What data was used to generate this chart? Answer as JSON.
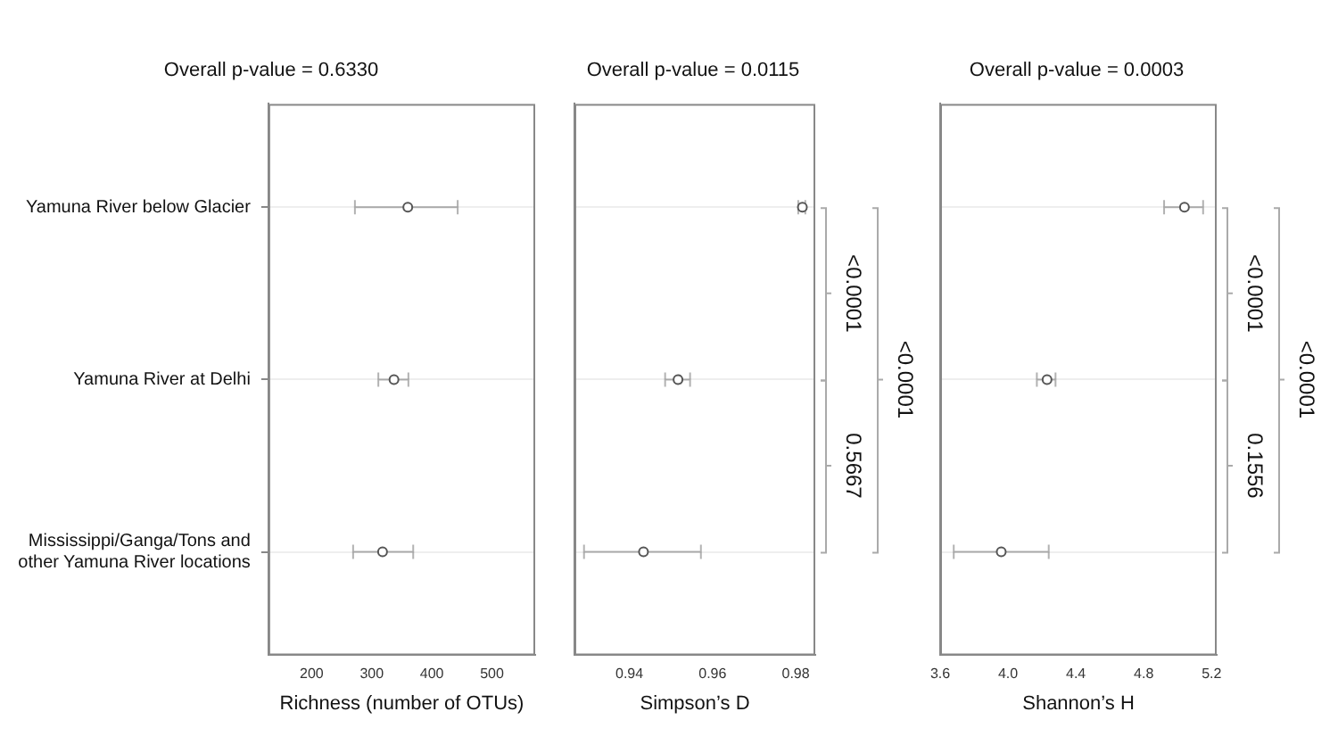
{
  "chart_data": [
    {
      "type": "scatter",
      "orientation": "horizontal",
      "title": "Overall p-value = 0.6330",
      "xlabel": "Richness (number of OTUs)",
      "categories": [
        "Yamuna River below Glacier",
        "Yamuna River at Delhi",
        "Mississippi/Ganga/Tons and other Yamuna River locations"
      ],
      "series": [
        {
          "color": "#555555",
          "values": [
            360,
            337,
            318
          ],
          "errors": [
            [
              272,
              443
            ],
            [
              311,
              361
            ],
            [
              269,
              369
            ]
          ]
        }
      ],
      "xlim": [
        128,
        572
      ],
      "xticks": [
        200,
        300,
        400,
        500
      ],
      "grid": "y",
      "marker": "circle"
    },
    {
      "type": "scatter",
      "orientation": "horizontal",
      "title": "Overall p-value = 0.0115",
      "xlabel": "Simpson’s D",
      "series": [
        {
          "color": "#555555",
          "values": [
            0.9816,
            0.9517,
            0.9434
          ],
          "errors": [
            [
              0.9806,
              0.9823
            ],
            [
              0.9486,
              0.9546
            ],
            [
              0.9291,
              0.9572
            ]
          ]
        }
      ],
      "xlim": [
        0.9268,
        0.9847
      ],
      "xticks": [
        0.94,
        0.96,
        0.98
      ],
      "grid": "y",
      "marker": "circle",
      "tick_labels": "x",
      "annotations": [
        "<0.0001",
        "0.5667",
        "<0.0001"
      ]
    },
    {
      "type": "scatter",
      "orientation": "horizontal",
      "title": "Overall p-value = 0.0003",
      "xlabel": "Shannon’s H",
      "series": [
        {
          "color": "#555555",
          "values": [
            5.04,
            4.23,
            3.96
          ],
          "errors": [
            [
              4.92,
              5.15
            ],
            [
              4.17,
              4.28
            ],
            [
              3.68,
              4.24
            ]
          ]
        }
      ],
      "xlim": [
        3.6,
        5.23
      ],
      "xticks": [
        3.6,
        {
          "value": 4,
          "label": "4.0"
        },
        4.4,
        4.8,
        5.2
      ],
      "grid": "y",
      "marker": "circle",
      "tick_labels": "x",
      "annotations": [
        "<0.0001",
        "0.1556",
        "<0.0001"
      ]
    }
  ]
}
